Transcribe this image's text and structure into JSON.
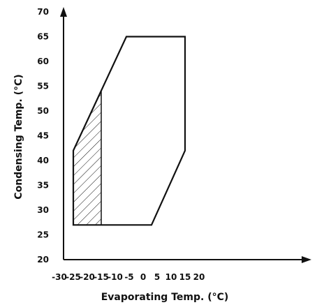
{
  "chart_data": {
    "type": "area",
    "title": "",
    "xlabel": "Evaporating Temp. (°C)",
    "ylabel": "Condensing Temp. (°C)",
    "xlim": [
      -30,
      20
    ],
    "ylim": [
      20,
      70
    ],
    "x_ticks": [
      -30,
      -25,
      -20,
      -15,
      -10,
      -5,
      0,
      5,
      10,
      15,
      20
    ],
    "y_ticks": [
      20,
      25,
      30,
      35,
      40,
      45,
      50,
      55,
      60,
      65,
      70
    ],
    "grid": false,
    "colors": {
      "axis": "#111111",
      "envelope": "#111111",
      "hatch": "#111111",
      "background": "#ffffff"
    },
    "envelope": [
      {
        "x": -25,
        "y": 27
      },
      {
        "x": -25,
        "y": 42
      },
      {
        "x": -6,
        "y": 65
      },
      {
        "x": 15,
        "y": 65
      },
      {
        "x": 15,
        "y": 42
      },
      {
        "x": 3,
        "y": 27
      }
    ],
    "hatched_region": [
      {
        "x": -25,
        "y": 27
      },
      {
        "x": -25,
        "y": 42
      },
      {
        "x": -15,
        "y": 54
      },
      {
        "x": -15,
        "y": 27
      }
    ]
  }
}
